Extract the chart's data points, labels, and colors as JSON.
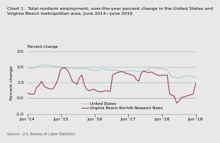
{
  "title_line1": "Chart 1.  Total nonfarm employment, over-the-year percent change in the United States and",
  "title_line2": "Virginia Beach metropolitan area, June 2014—June 2019",
  "ylabel": "Percent change",
  "source": "Source:  U.S. Bureau of Labor Statistics",
  "legend_us": "United States",
  "legend_vb": "Virginia Beach-Norfolk-Newport News",
  "ylim": [
    -1.0,
    3.0
  ],
  "yticks": [
    -1.0,
    0.0,
    1.0,
    2.0,
    3.0
  ],
  "ytick_labels": [
    "-1.0",
    "0.0",
    "1.0",
    "2.0",
    "3.0"
  ],
  "xtick_labels": [
    "Jun '14",
    "Jun '15",
    "Jun '16",
    "Jun '17",
    "Jun '18",
    "Jun '19"
  ],
  "us_color": "#9dc3d4",
  "vb_color": "#9b2335",
  "bg_color": "#e8e8e8",
  "us_data": [
    1.97,
    1.93,
    1.9,
    1.96,
    2.02,
    2.07,
    2.1,
    2.12,
    2.13,
    2.1,
    2.06,
    2.05,
    2.03,
    1.99,
    2.01,
    1.98,
    1.96,
    1.94,
    1.95,
    1.92,
    1.9,
    1.89,
    1.89,
    1.91,
    1.9,
    1.87,
    1.84,
    1.81,
    1.79,
    1.77,
    1.8,
    1.84,
    1.87,
    1.84,
    1.81,
    1.79,
    1.81,
    1.79,
    1.77,
    1.74,
    1.71,
    1.71,
    1.73,
    1.75,
    1.77,
    1.74,
    1.71,
    1.69,
    1.71,
    1.74,
    1.77,
    1.81,
    1.99,
    1.97,
    1.94,
    1.91,
    1.89,
    1.87,
    1.84,
    1.81,
    1.54,
    1.39,
    1.34,
    1.29,
    1.31,
    1.34,
    1.37,
    1.41,
    1.44,
    1.41,
    1.37,
    1.34
  ],
  "vb_data": [
    0.35,
    0.27,
    0.25,
    0.28,
    0.72,
    0.82,
    1.08,
    0.78,
    0.68,
    0.62,
    0.58,
    0.62,
    0.88,
    1.22,
    1.82,
    1.93,
    1.93,
    1.78,
    1.48,
    1.08,
    0.98,
    0.88,
    1.32,
    1.48,
    0.88,
    0.58,
    0.48,
    0.52,
    0.58,
    0.48,
    0.43,
    0.4,
    0.43,
    0.48,
    0.46,
    0.43,
    1.48,
    1.58,
    1.63,
    1.68,
    1.7,
    1.63,
    1.58,
    1.53,
    1.48,
    1.43,
    1.18,
    1.08,
    1.58,
    1.73,
    1.68,
    1.63,
    1.68,
    1.63,
    1.53,
    1.48,
    1.43,
    1.48,
    1.46,
    1.48,
    0.28,
    0.18,
    0.12,
    -0.32,
    -0.18,
    0.03,
    0.08,
    0.12,
    0.18,
    0.22,
    0.28,
    0.95
  ]
}
